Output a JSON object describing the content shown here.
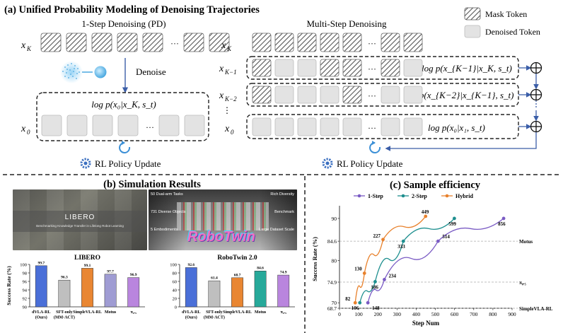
{
  "figure": {
    "title_a": "(a) Unified Probability Modeling of Denoising Trajectories",
    "title_b": "(b) Simulation Results",
    "title_c": "(c) Sample efficiency"
  },
  "legend_tokens": {
    "mask": "Mask Token",
    "denoised": "Denoised Token"
  },
  "panel_a": {
    "one_step_title": "1-Step Denoising (PD)",
    "multi_step_title": "Multi-Step Denoising",
    "denoise_label": "Denoise",
    "rl_update": "RL Policy Update",
    "ellipsis": "···",
    "row_labels": {
      "xK": "x",
      "xK_sub": "K",
      "xK1_sub": "K−1",
      "xK2_sub": "K−2",
      "x0_sub": "0",
      "vdots": "⋮"
    },
    "formulas": {
      "one_step": "log p(x₀|x_K, s_t)",
      "row_k1": "log p(x_{K−1}|x_K, s_t)",
      "row_k2": "log p(x_{K−2}|x_{K−1}, s_t)",
      "row_0": "log p(x₀|x₁, s_t)"
    },
    "colors": {
      "arrow": "#3b5ea8",
      "token_fill": "#e3e3e3",
      "hatch": "#555555"
    }
  },
  "panel_b": {
    "libero_image_caption": "LIBERO",
    "libero_image_subcaption": "Benchmarking Knowledge Transfer in Lifelong Robot Learning",
    "robotwin_image_caption": "RoboTwin",
    "robotwin_tags": [
      "50 Dual-arm Tasks",
      "731 Diverse Objects",
      "5 Embodiments",
      "Rich Diversity",
      "Benchmark",
      "Large Dataset Scale"
    ]
  },
  "chart_data": [
    {
      "type": "bar",
      "title": "LIBERO",
      "ylabel": "Success Rate (%)",
      "ylim": [
        90,
        100
      ],
      "yticks": [
        "90",
        "92",
        "94",
        "96",
        "98",
        "100"
      ],
      "categories": [
        "dVLA-RL (Ours)",
        "SFT-only (MM-ACT)",
        "SimpleVLA-RL",
        "Motus",
        "π₀.₅"
      ],
      "values": [
        99.7,
        96.3,
        99.1,
        97.7,
        96.9
      ],
      "labels": [
        "99.7",
        "96.3",
        "99.1",
        "97.7",
        "96.9"
      ],
      "colors": [
        "#4a6fd8",
        "#bfbfbf",
        "#e98632",
        "#9f9cd3",
        "#b985de"
      ]
    },
    {
      "type": "bar",
      "title": "RoboTwin 2.0",
      "ylim": [
        0,
        100
      ],
      "yticks": [
        "0",
        "20",
        "40",
        "60",
        "80",
        "100"
      ],
      "categories": [
        "dVLA-RL (Ours)",
        "SFT-only (MM-ACT)",
        "SimpleVLA-RL",
        "Motus",
        "π₀.₅"
      ],
      "values": [
        92.6,
        61.4,
        68.7,
        84.6,
        74.9
      ],
      "labels": [
        "92.6",
        "61.4",
        "68.7",
        "84.6",
        "74.9"
      ],
      "colors": [
        "#4a6fd8",
        "#bfbfbf",
        "#e98632",
        "#27a99a",
        "#b985de"
      ]
    },
    {
      "type": "line",
      "title": "(c) Sample efficiency",
      "xlabel": "Step Num",
      "ylabel": "Success Rate (%)",
      "xlim": [
        0,
        900
      ],
      "ylim": [
        68.7,
        92
      ],
      "xticks": [
        "0",
        "100",
        "200",
        "300",
        "400",
        "500",
        "600",
        "700",
        "800",
        "900"
      ],
      "yticks": [
        "68.7",
        "70",
        "74.9",
        "80",
        "84.6",
        "90"
      ],
      "ref_lines": [
        {
          "y": 84.6,
          "label": "Motus"
        },
        {
          "y": 74.9,
          "label": "π₀.₅"
        },
        {
          "y": 68.7,
          "label": "SimpleVLA-RL"
        }
      ],
      "legend": "top",
      "grid": false,
      "series": [
        {
          "name": "1-Step",
          "color": "#7a5bc4",
          "x": [
            148,
            234,
            514,
            856
          ],
          "y": [
            70,
            75.5,
            84.6,
            90
          ],
          "labels": [
            "148",
            "234",
            "514",
            "856"
          ]
        },
        {
          "name": "2-Step",
          "color": "#1e8f8f",
          "x": [
            106,
            186,
            333,
            599
          ],
          "y": [
            70,
            75,
            84.6,
            90
          ],
          "labels": [
            "106",
            "186",
            "333",
            "599"
          ]
        },
        {
          "name": "Hybrid",
          "color": "#e8812c",
          "x": [
            82,
            130,
            227,
            449
          ],
          "y": [
            70,
            77,
            85,
            90.5
          ],
          "labels": [
            "82",
            "130",
            "227",
            "449"
          ]
        }
      ]
    }
  ]
}
